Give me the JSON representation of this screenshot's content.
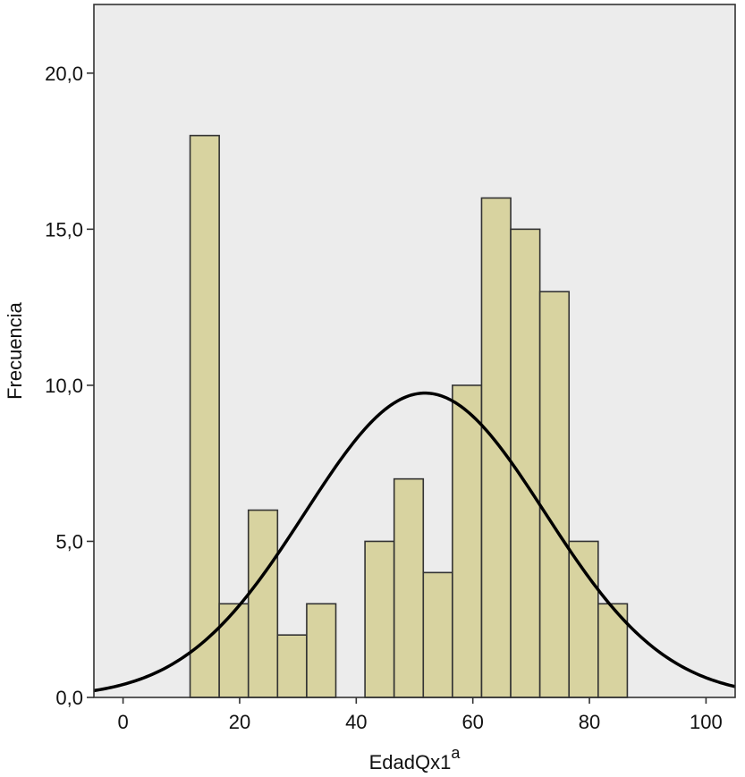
{
  "chart_data": {
    "type": "bar",
    "title": "",
    "xlabel": "EdadQx1",
    "xlabel_superscript": "a",
    "ylabel": "Frecuencia",
    "xlim": [
      -5,
      105
    ],
    "ylim": [
      0,
      22.2
    ],
    "grid": false,
    "bin_width": 5,
    "x_ticks": [
      {
        "value": 0,
        "label": "0"
      },
      {
        "value": 20,
        "label": "20"
      },
      {
        "value": 40,
        "label": "40"
      },
      {
        "value": 60,
        "label": "60"
      },
      {
        "value": 80,
        "label": "80"
      },
      {
        "value": 100,
        "label": "100"
      }
    ],
    "y_ticks": [
      {
        "value": 0,
        "label": "0,0"
      },
      {
        "value": 5,
        "label": "5,0"
      },
      {
        "value": 10,
        "label": "10,0"
      },
      {
        "value": 15,
        "label": "15,0"
      },
      {
        "value": 20,
        "label": "20,0"
      }
    ],
    "bins": [
      {
        "start": 11.5,
        "end": 16.5,
        "count": 18
      },
      {
        "start": 16.5,
        "end": 21.5,
        "count": 3
      },
      {
        "start": 21.5,
        "end": 26.5,
        "count": 6
      },
      {
        "start": 26.5,
        "end": 31.5,
        "count": 2
      },
      {
        "start": 31.5,
        "end": 36.5,
        "count": 3
      },
      {
        "start": 41.5,
        "end": 46.5,
        "count": 5
      },
      {
        "start": 46.5,
        "end": 51.5,
        "count": 7
      },
      {
        "start": 51.5,
        "end": 56.5,
        "count": 4
      },
      {
        "start": 56.5,
        "end": 61.5,
        "count": 10
      },
      {
        "start": 61.5,
        "end": 66.5,
        "count": 16
      },
      {
        "start": 66.5,
        "end": 71.5,
        "count": 15
      },
      {
        "start": 71.5,
        "end": 76.5,
        "count": 13
      },
      {
        "start": 76.5,
        "end": 81.5,
        "count": 5
      },
      {
        "start": 81.5,
        "end": 86.5,
        "count": 3
      }
    ],
    "normal_curve": {
      "mean": 51.8,
      "sd": 20.6,
      "peak": 9.75
    },
    "colors": {
      "plot_background": "#ececec",
      "bar_fill": "#d8d3a0",
      "bar_stroke": "#333333",
      "curve": "#000000",
      "axis": "#333333"
    }
  }
}
